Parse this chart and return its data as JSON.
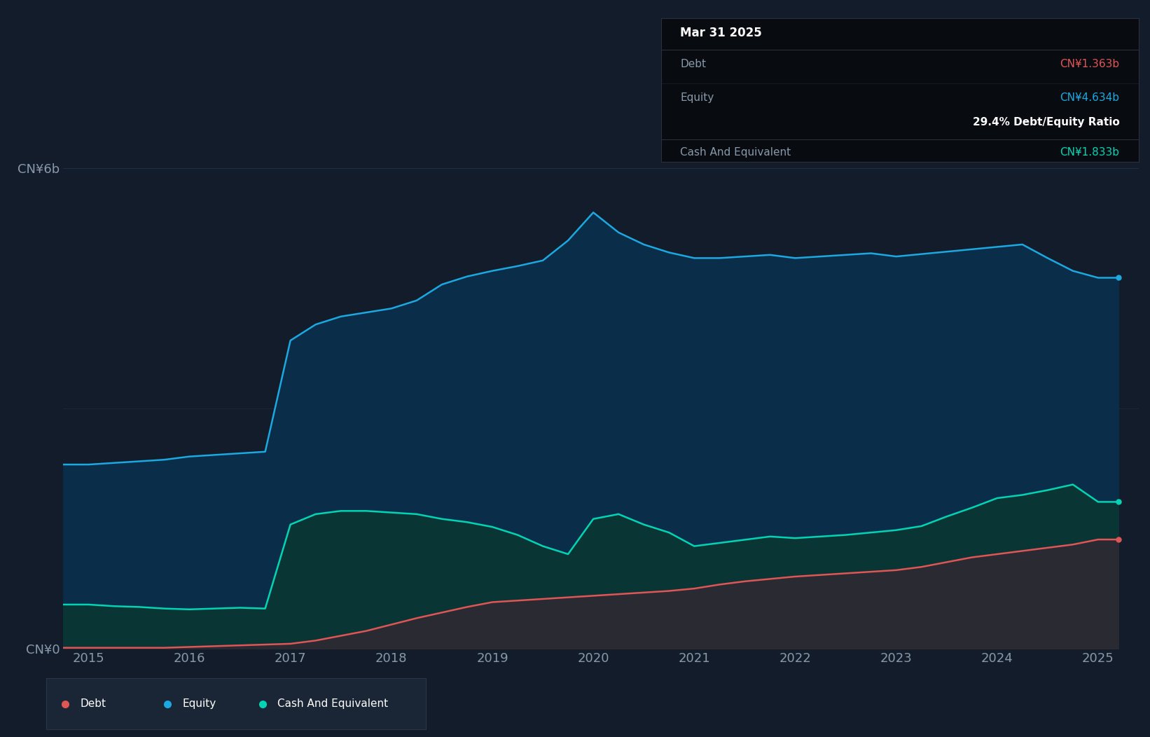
{
  "bg_color": "#131c2b",
  "plot_bg_color": "#131c2b",
  "equity_color": "#1ca8e0",
  "equity_fill": "#0a2d4a",
  "debt_color": "#e05555",
  "debt_fill": "#2a2a32",
  "cash_color": "#00d4b4",
  "cash_fill": "#0a3535",
  "grid_color": "#1e2e40",
  "text_color": "#8899aa",
  "dates": [
    2014.75,
    2015.0,
    2015.25,
    2015.5,
    2015.75,
    2016.0,
    2016.25,
    2016.5,
    2016.75,
    2017.0,
    2017.25,
    2017.5,
    2017.75,
    2018.0,
    2018.25,
    2018.5,
    2018.75,
    2019.0,
    2019.25,
    2019.5,
    2019.75,
    2020.0,
    2020.25,
    2020.5,
    2020.75,
    2021.0,
    2021.25,
    2021.5,
    2021.75,
    2022.0,
    2022.25,
    2022.5,
    2022.75,
    2023.0,
    2023.25,
    2023.5,
    2023.75,
    2024.0,
    2024.25,
    2024.5,
    2024.75,
    2025.0,
    2025.2
  ],
  "equity": [
    2.3,
    2.3,
    2.32,
    2.34,
    2.36,
    2.4,
    2.42,
    2.44,
    2.46,
    3.85,
    4.05,
    4.15,
    4.2,
    4.25,
    4.35,
    4.55,
    4.65,
    4.72,
    4.78,
    4.85,
    5.1,
    5.45,
    5.2,
    5.05,
    4.95,
    4.88,
    4.88,
    4.9,
    4.92,
    4.88,
    4.9,
    4.92,
    4.94,
    4.9,
    4.93,
    4.96,
    4.99,
    5.02,
    5.05,
    4.88,
    4.72,
    4.634,
    4.634
  ],
  "cash": [
    0.55,
    0.55,
    0.53,
    0.52,
    0.5,
    0.49,
    0.5,
    0.51,
    0.5,
    1.55,
    1.68,
    1.72,
    1.72,
    1.7,
    1.68,
    1.62,
    1.58,
    1.52,
    1.42,
    1.28,
    1.18,
    1.62,
    1.68,
    1.55,
    1.45,
    1.28,
    1.32,
    1.36,
    1.4,
    1.38,
    1.4,
    1.42,
    1.45,
    1.48,
    1.53,
    1.65,
    1.76,
    1.88,
    1.92,
    1.98,
    2.05,
    1.833,
    1.833
  ],
  "debt": [
    0.01,
    0.01,
    0.01,
    0.01,
    0.01,
    0.02,
    0.03,
    0.04,
    0.05,
    0.06,
    0.1,
    0.16,
    0.22,
    0.3,
    0.38,
    0.45,
    0.52,
    0.58,
    0.6,
    0.62,
    0.64,
    0.66,
    0.68,
    0.7,
    0.72,
    0.75,
    0.8,
    0.84,
    0.87,
    0.9,
    0.92,
    0.94,
    0.96,
    0.98,
    1.02,
    1.08,
    1.14,
    1.18,
    1.22,
    1.26,
    1.3,
    1.363,
    1.363
  ],
  "tooltip": {
    "date": "Mar 31 2025",
    "debt_label": "Debt",
    "debt_value": "CN¥1.363b",
    "debt_color": "#e05555",
    "equity_label": "Equity",
    "equity_value": "CN¥4.634b",
    "equity_color": "#1ca8e0",
    "ratio_text": "29.4% Debt/Equity Ratio",
    "ratio_color": "#ffffff",
    "cash_label": "Cash And Equivalent",
    "cash_value": "CN¥1.833b",
    "cash_color": "#00d4b4",
    "bg_color": "#080c10",
    "label_color": "#8899aa"
  },
  "ylim": [
    0,
    7.0
  ],
  "ytick_positions": [
    0,
    6
  ],
  "ytick_labels": [
    "CN¥0",
    "CN¥6b"
  ],
  "xlim_min": 2014.75,
  "xlim_max": 2025.4,
  "xtick_positions": [
    2015,
    2016,
    2017,
    2018,
    2019,
    2020,
    2021,
    2022,
    2023,
    2024,
    2025
  ]
}
